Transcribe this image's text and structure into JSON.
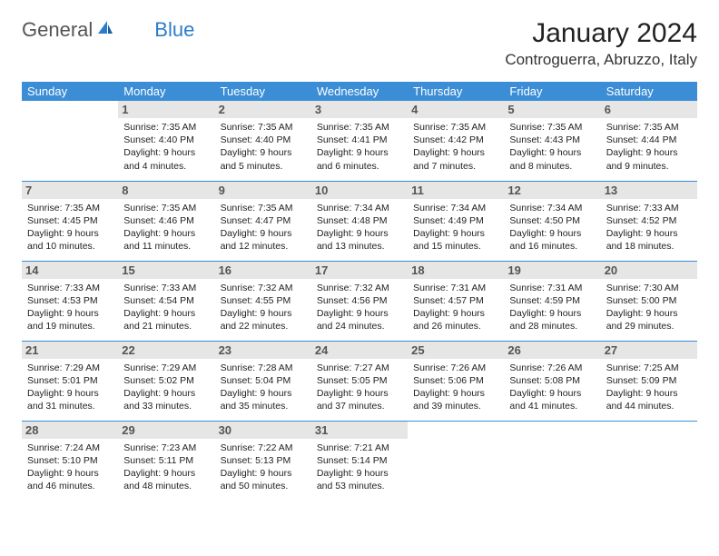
{
  "brand": {
    "part1": "General",
    "part2": "Blue"
  },
  "header": {
    "month_title": "January 2024",
    "location": "Controguerra, Abruzzo, Italy"
  },
  "colors": {
    "header_blue": "#3b8dd6",
    "daynum_bg": "#e6e6e6",
    "brand_blue": "#2b7dc9"
  },
  "fonts": {
    "title_size_pt": 22,
    "location_size_pt": 13,
    "dow_size_pt": 10,
    "cell_size_pt": 8
  },
  "days_of_week": [
    "Sunday",
    "Monday",
    "Tuesday",
    "Wednesday",
    "Thursday",
    "Friday",
    "Saturday"
  ],
  "weeks": [
    [
      null,
      {
        "n": "1",
        "sunrise": "7:35 AM",
        "sunset": "4:40 PM",
        "dl1": "Daylight: 9 hours",
        "dl2": "and 4 minutes."
      },
      {
        "n": "2",
        "sunrise": "7:35 AM",
        "sunset": "4:40 PM",
        "dl1": "Daylight: 9 hours",
        "dl2": "and 5 minutes."
      },
      {
        "n": "3",
        "sunrise": "7:35 AM",
        "sunset": "4:41 PM",
        "dl1": "Daylight: 9 hours",
        "dl2": "and 6 minutes."
      },
      {
        "n": "4",
        "sunrise": "7:35 AM",
        "sunset": "4:42 PM",
        "dl1": "Daylight: 9 hours",
        "dl2": "and 7 minutes."
      },
      {
        "n": "5",
        "sunrise": "7:35 AM",
        "sunset": "4:43 PM",
        "dl1": "Daylight: 9 hours",
        "dl2": "and 8 minutes."
      },
      {
        "n": "6",
        "sunrise": "7:35 AM",
        "sunset": "4:44 PM",
        "dl1": "Daylight: 9 hours",
        "dl2": "and 9 minutes."
      }
    ],
    [
      {
        "n": "7",
        "sunrise": "7:35 AM",
        "sunset": "4:45 PM",
        "dl1": "Daylight: 9 hours",
        "dl2": "and 10 minutes."
      },
      {
        "n": "8",
        "sunrise": "7:35 AM",
        "sunset": "4:46 PM",
        "dl1": "Daylight: 9 hours",
        "dl2": "and 11 minutes."
      },
      {
        "n": "9",
        "sunrise": "7:35 AM",
        "sunset": "4:47 PM",
        "dl1": "Daylight: 9 hours",
        "dl2": "and 12 minutes."
      },
      {
        "n": "10",
        "sunrise": "7:34 AM",
        "sunset": "4:48 PM",
        "dl1": "Daylight: 9 hours",
        "dl2": "and 13 minutes."
      },
      {
        "n": "11",
        "sunrise": "7:34 AM",
        "sunset": "4:49 PM",
        "dl1": "Daylight: 9 hours",
        "dl2": "and 15 minutes."
      },
      {
        "n": "12",
        "sunrise": "7:34 AM",
        "sunset": "4:50 PM",
        "dl1": "Daylight: 9 hours",
        "dl2": "and 16 minutes."
      },
      {
        "n": "13",
        "sunrise": "7:33 AM",
        "sunset": "4:52 PM",
        "dl1": "Daylight: 9 hours",
        "dl2": "and 18 minutes."
      }
    ],
    [
      {
        "n": "14",
        "sunrise": "7:33 AM",
        "sunset": "4:53 PM",
        "dl1": "Daylight: 9 hours",
        "dl2": "and 19 minutes."
      },
      {
        "n": "15",
        "sunrise": "7:33 AM",
        "sunset": "4:54 PM",
        "dl1": "Daylight: 9 hours",
        "dl2": "and 21 minutes."
      },
      {
        "n": "16",
        "sunrise": "7:32 AM",
        "sunset": "4:55 PM",
        "dl1": "Daylight: 9 hours",
        "dl2": "and 22 minutes."
      },
      {
        "n": "17",
        "sunrise": "7:32 AM",
        "sunset": "4:56 PM",
        "dl1": "Daylight: 9 hours",
        "dl2": "and 24 minutes."
      },
      {
        "n": "18",
        "sunrise": "7:31 AM",
        "sunset": "4:57 PM",
        "dl1": "Daylight: 9 hours",
        "dl2": "and 26 minutes."
      },
      {
        "n": "19",
        "sunrise": "7:31 AM",
        "sunset": "4:59 PM",
        "dl1": "Daylight: 9 hours",
        "dl2": "and 28 minutes."
      },
      {
        "n": "20",
        "sunrise": "7:30 AM",
        "sunset": "5:00 PM",
        "dl1": "Daylight: 9 hours",
        "dl2": "and 29 minutes."
      }
    ],
    [
      {
        "n": "21",
        "sunrise": "7:29 AM",
        "sunset": "5:01 PM",
        "dl1": "Daylight: 9 hours",
        "dl2": "and 31 minutes."
      },
      {
        "n": "22",
        "sunrise": "7:29 AM",
        "sunset": "5:02 PM",
        "dl1": "Daylight: 9 hours",
        "dl2": "and 33 minutes."
      },
      {
        "n": "23",
        "sunrise": "7:28 AM",
        "sunset": "5:04 PM",
        "dl1": "Daylight: 9 hours",
        "dl2": "and 35 minutes."
      },
      {
        "n": "24",
        "sunrise": "7:27 AM",
        "sunset": "5:05 PM",
        "dl1": "Daylight: 9 hours",
        "dl2": "and 37 minutes."
      },
      {
        "n": "25",
        "sunrise": "7:26 AM",
        "sunset": "5:06 PM",
        "dl1": "Daylight: 9 hours",
        "dl2": "and 39 minutes."
      },
      {
        "n": "26",
        "sunrise": "7:26 AM",
        "sunset": "5:08 PM",
        "dl1": "Daylight: 9 hours",
        "dl2": "and 41 minutes."
      },
      {
        "n": "27",
        "sunrise": "7:25 AM",
        "sunset": "5:09 PM",
        "dl1": "Daylight: 9 hours",
        "dl2": "and 44 minutes."
      }
    ],
    [
      {
        "n": "28",
        "sunrise": "7:24 AM",
        "sunset": "5:10 PM",
        "dl1": "Daylight: 9 hours",
        "dl2": "and 46 minutes."
      },
      {
        "n": "29",
        "sunrise": "7:23 AM",
        "sunset": "5:11 PM",
        "dl1": "Daylight: 9 hours",
        "dl2": "and 48 minutes."
      },
      {
        "n": "30",
        "sunrise": "7:22 AM",
        "sunset": "5:13 PM",
        "dl1": "Daylight: 9 hours",
        "dl2": "and 50 minutes."
      },
      {
        "n": "31",
        "sunrise": "7:21 AM",
        "sunset": "5:14 PM",
        "dl1": "Daylight: 9 hours",
        "dl2": "and 53 minutes."
      },
      null,
      null,
      null
    ]
  ]
}
